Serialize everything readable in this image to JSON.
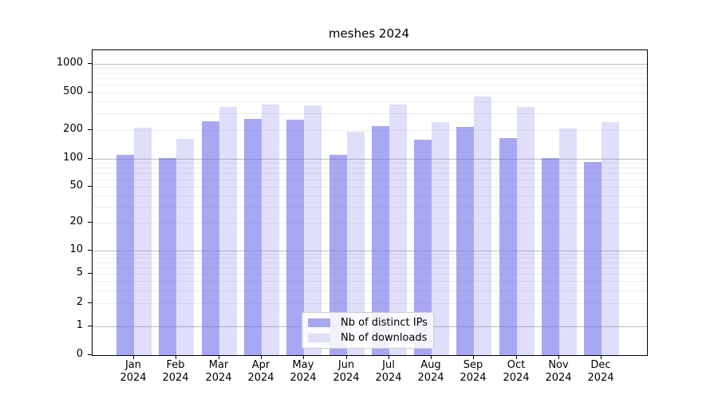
{
  "chart_data": {
    "type": "bar",
    "title": "meshes 2024",
    "categories": [
      "Jan 2024",
      "Feb 2024",
      "Mar 2024",
      "Apr 2024",
      "May 2024",
      "Jun 2024",
      "Jul 2024",
      "Aug 2024",
      "Sep 2024",
      "Oct 2024",
      "Nov 2024",
      "Dec 2024"
    ],
    "month_labels": [
      "Jan",
      "Feb",
      "Mar",
      "Apr",
      "May",
      "Jun",
      "Jul",
      "Aug",
      "Sep",
      "Oct",
      "Nov",
      "Dec"
    ],
    "year_label": "2024",
    "series": [
      {
        "name": "Nb of distinct IPs",
        "values": [
          110,
          102,
          250,
          265,
          260,
          110,
          220,
          160,
          218,
          166,
          101,
          92
        ]
      },
      {
        "name": "Nb of downloads",
        "values": [
          213,
          163,
          352,
          374,
          369,
          193,
          374,
          243,
          448,
          351,
          209,
          245
        ]
      }
    ],
    "yscale": "symlog",
    "y_ticks": [
      0,
      1,
      2,
      5,
      10,
      20,
      50,
      100,
      200,
      500,
      1000
    ],
    "ylim": [
      0,
      1400
    ],
    "grid": "on",
    "legend_position": "lower-center"
  },
  "colors": {
    "bar_distinct_ips": "rgba(110,110,233,0.6)",
    "bar_downloads": "rgba(110,110,233,0.22)",
    "legend_swatch_ips": "#a8a8f0",
    "legend_swatch_downloads": "#dfdff9",
    "grid_major": "#bcbcbc",
    "grid_minor": "#ececec",
    "spine": "#000000",
    "background": "#ffffff"
  }
}
